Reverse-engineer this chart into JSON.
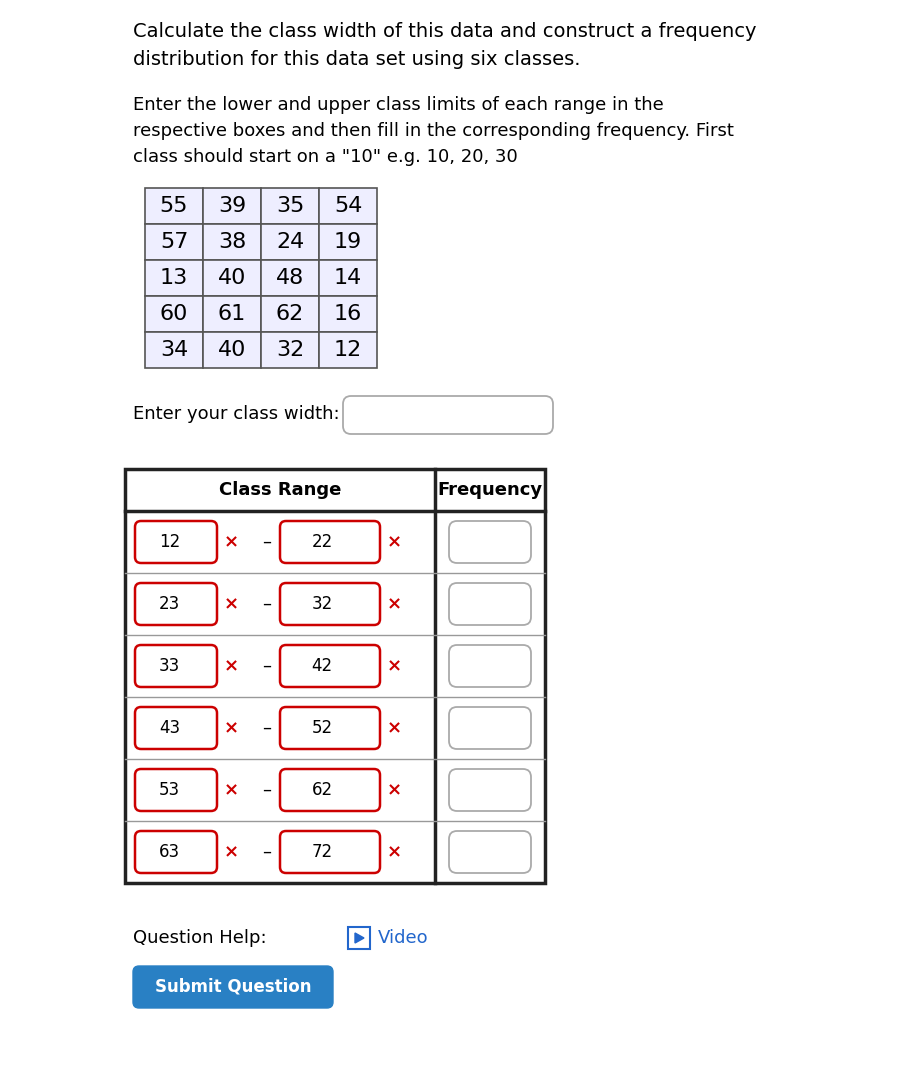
{
  "bg_color": "#ffffff",
  "title_lines": [
    "Calculate the class width of this data and construct a frequency",
    "distribution for this data set using six classes."
  ],
  "subtitle_lines": [
    "Enter the lower and upper class limits of each range in the",
    "respective boxes and then fill in the corresponding frequency. First",
    "class should start on a \"10\" e.g. 10, 20, 30"
  ],
  "data_table": [
    [
      55,
      39,
      35,
      54
    ],
    [
      57,
      38,
      24,
      19
    ],
    [
      13,
      40,
      48,
      14
    ],
    [
      60,
      61,
      62,
      16
    ],
    [
      34,
      40,
      32,
      12
    ]
  ],
  "data_table_cell_bg": "#eeeeff",
  "class_width_label": "Enter your class width:",
  "freq_table_header": [
    "Class Range",
    "Frequency"
  ],
  "class_ranges": [
    [
      12,
      22
    ],
    [
      23,
      32
    ],
    [
      33,
      42
    ],
    [
      43,
      52
    ],
    [
      53,
      62
    ],
    [
      63,
      72
    ]
  ],
  "question_help_text": "Question Help:",
  "video_text": "Video",
  "submit_text": "Submit Question",
  "submit_bg": "#2980c4",
  "submit_fg": "#ffffff",
  "video_color": "#2266cc",
  "red_x_color": "#cc0000",
  "input_border_color": "#cc0000",
  "table_border_color": "#333333",
  "data_table_border": "#555555",
  "font_color": "#000000",
  "font_size_title": 14,
  "font_size_body": 13,
  "font_size_table_data": 16,
  "font_size_freq_table": 13
}
